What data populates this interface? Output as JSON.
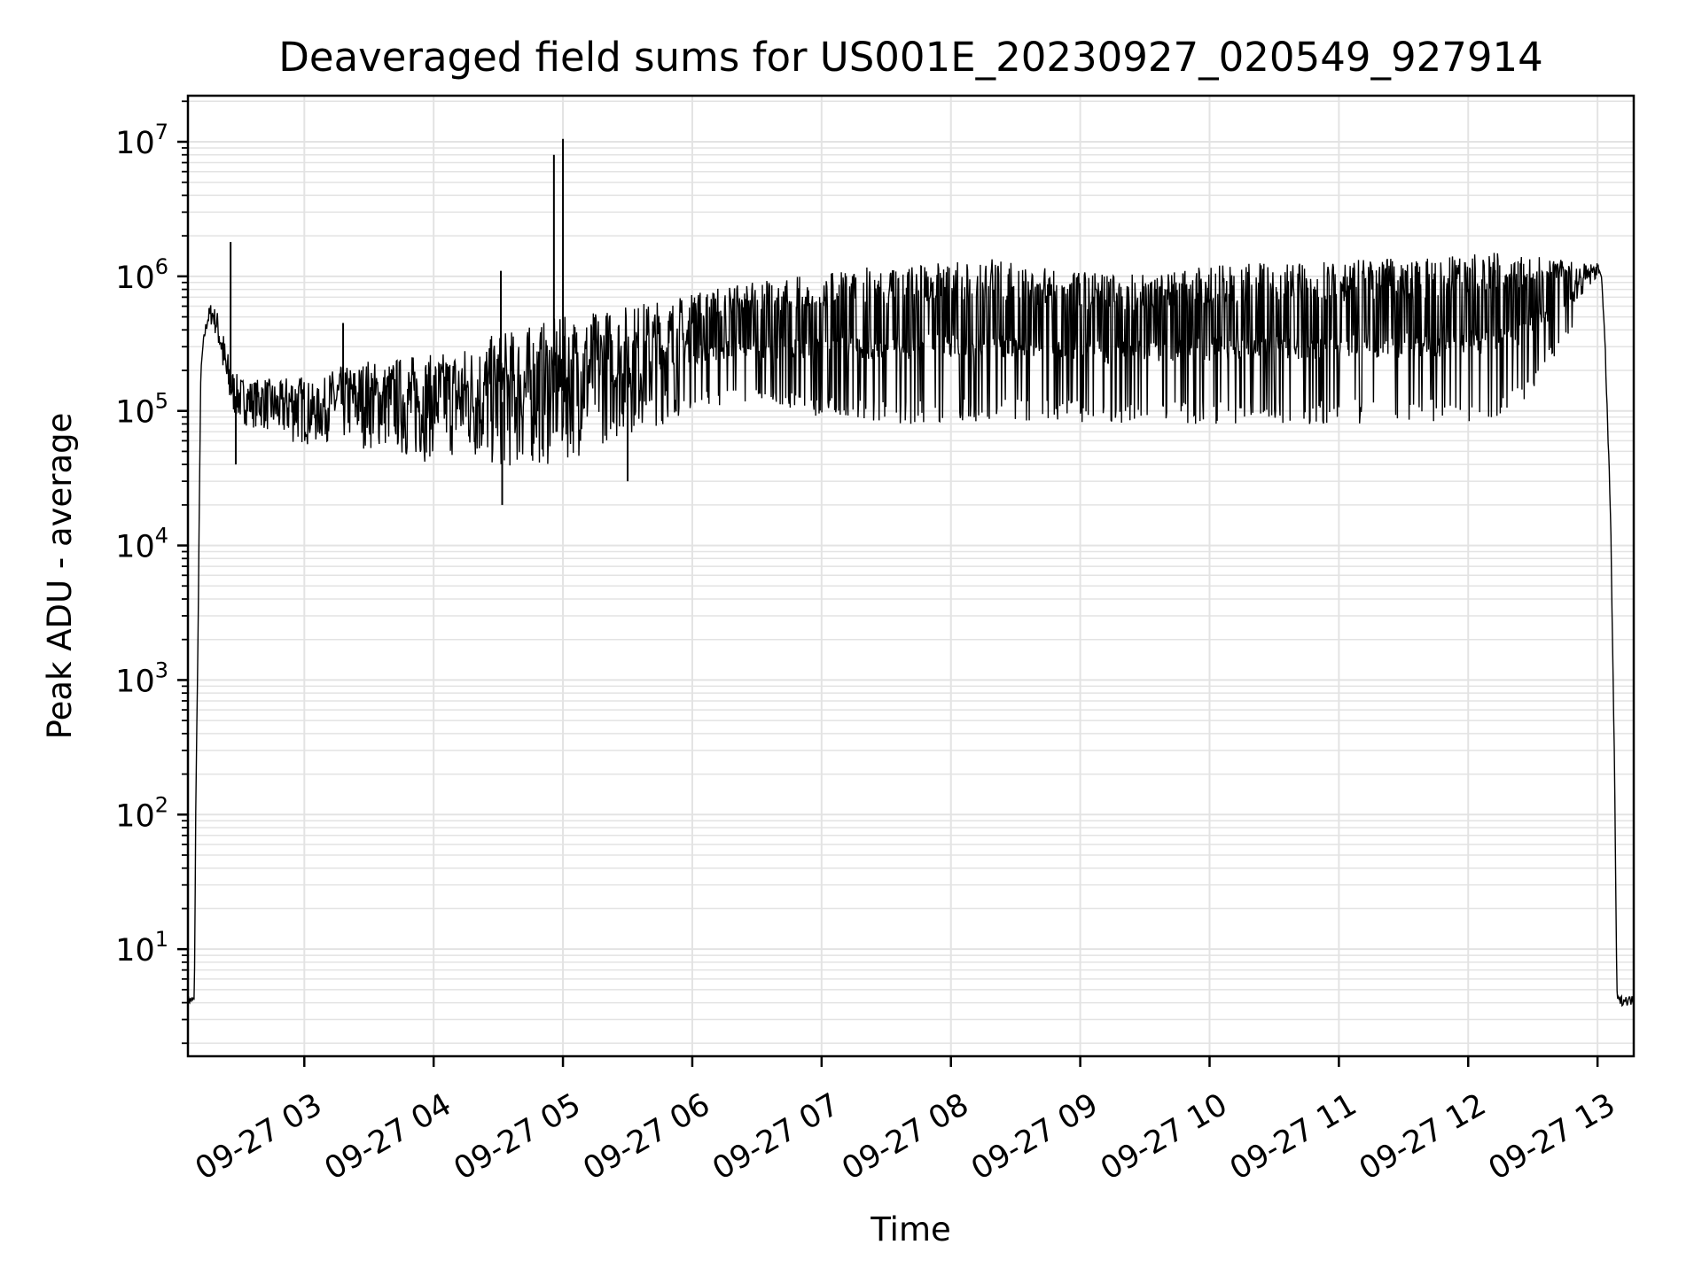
{
  "chart_data": {
    "type": "line",
    "title": "Deaveraged field sums for US001E_20230927_020549_927914",
    "xlabel": "Time",
    "ylabel": "Peak ADU - average",
    "yscale": "log",
    "ylim": [
      1.6,
      22000000
    ],
    "xlim": [
      "09-27 02:06",
      "09-27 13:17"
    ],
    "grid": true,
    "line_color": "#000000",
    "grid_color": "#e3e3e3",
    "x_tick_labels": [
      "09-27 03",
      "09-27 04",
      "09-27 05",
      "09-27 06",
      "09-27 07",
      "09-27 08",
      "09-27 09",
      "09-27 10",
      "09-27 11",
      "09-27 12",
      "09-27 13"
    ],
    "x_ticks_hours": [
      3,
      4,
      5,
      6,
      7,
      8,
      9,
      10,
      11,
      12,
      13
    ],
    "y_ticks": [
      {
        "base": "10",
        "exp": "1",
        "value": 10
      },
      {
        "base": "10",
        "exp": "2",
        "value": 100
      },
      {
        "base": "10",
        "exp": "3",
        "value": 1000
      },
      {
        "base": "10",
        "exp": "4",
        "value": 10000
      },
      {
        "base": "10",
        "exp": "5",
        "value": 100000
      },
      {
        "base": "10",
        "exp": "6",
        "value": 1000000
      },
      {
        "base": "10",
        "exp": "7",
        "value": 10000000
      }
    ],
    "series": [
      {
        "x_hours": [
          2.1,
          2.12,
          2.14,
          2.15,
          2.16,
          2.18,
          2.19,
          2.2,
          2.22,
          2.25,
          2.28,
          2.3,
          2.33,
          2.36,
          2.4,
          2.45,
          2.5,
          2.6,
          2.7,
          2.8,
          2.9,
          3.0,
          3.1,
          3.2,
          3.3,
          3.4,
          3.5,
          3.6,
          3.7,
          3.8,
          3.9,
          4.0,
          4.1,
          4.2,
          4.3,
          4.4,
          4.5,
          4.6,
          4.7,
          4.8,
          4.9,
          5.0,
          5.2,
          5.4,
          5.6,
          5.8,
          6.0,
          6.3,
          6.6,
          7.0,
          7.3,
          7.6,
          8.0,
          8.3,
          8.6,
          9.0,
          9.3,
          9.6,
          10.0,
          10.3,
          10.6,
          11.0,
          11.3,
          11.6,
          11.8,
          12.0,
          12.2,
          12.4,
          12.6,
          12.8,
          12.9,
          13.0,
          13.03,
          13.06,
          13.1,
          13.13,
          13.15,
          13.16,
          13.18,
          13.2,
          13.3
        ],
        "upper": [
          4.5,
          4.5,
          4.5,
          4.5,
          100,
          3000,
          30000,
          200000,
          350000,
          550000,
          650000,
          600000,
          550000,
          450000,
          300000,
          200000,
          180000,
          170000,
          180000,
          160000,
          200000,
          180000,
          150000,
          200000,
          220000,
          220000,
          250000,
          220000,
          250000,
          260000,
          270000,
          260000,
          280000,
          300000,
          320000,
          350000,
          380000,
          400000,
          420000,
          450000,
          480000,
          500000,
          550000,
          600000,
          650000,
          700000,
          750000,
          850000,
          950000,
          1050000,
          1150000,
          1250000,
          1350000,
          1350000,
          1200000,
          1100000,
          1050000,
          1100000,
          1200000,
          1250000,
          1250000,
          1300000,
          1350000,
          1350000,
          1400000,
          1450000,
          1500000,
          1450000,
          1400000,
          1350000,
          1250000,
          1250000,
          1100000,
          300000,
          20000,
          300,
          5,
          4.5,
          4.5,
          4.5,
          4.5
        ],
        "lower": [
          3.8,
          3.8,
          3.8,
          3.8,
          100,
          3000,
          30000,
          200000,
          300000,
          400000,
          420000,
          400000,
          300000,
          200000,
          100000,
          90000,
          80000,
          75000,
          70000,
          60000,
          55000,
          55000,
          55000,
          60000,
          55000,
          55000,
          50000,
          50000,
          50000,
          40000,
          40000,
          45000,
          45000,
          40000,
          40000,
          35000,
          35000,
          35000,
          35000,
          38000,
          38000,
          40000,
          50000,
          60000,
          70000,
          80000,
          100000,
          110000,
          100000,
          90000,
          85000,
          80000,
          80000,
          80000,
          85000,
          80000,
          80000,
          80000,
          80000,
          80000,
          80000,
          80000,
          80000,
          80000,
          80000,
          80000,
          90000,
          110000,
          200000,
          400000,
          700000,
          1000000,
          1000000,
          250000,
          15000,
          250,
          4,
          3.8,
          3.8,
          3.8,
          3.8
        ]
      }
    ],
    "spikes": [
      {
        "x_hours": 2.43,
        "y": 1800000
      },
      {
        "x_hours": 2.47,
        "y": 40000
      },
      {
        "x_hours": 3.3,
        "y": 450000
      },
      {
        "x_hours": 4.52,
        "y": 1100000
      },
      {
        "x_hours": 4.53,
        "y": 20000
      },
      {
        "x_hours": 4.93,
        "y": 8000000
      },
      {
        "x_hours": 5.0,
        "y": 10500000
      },
      {
        "x_hours": 5.5,
        "y": 30000
      }
    ]
  }
}
